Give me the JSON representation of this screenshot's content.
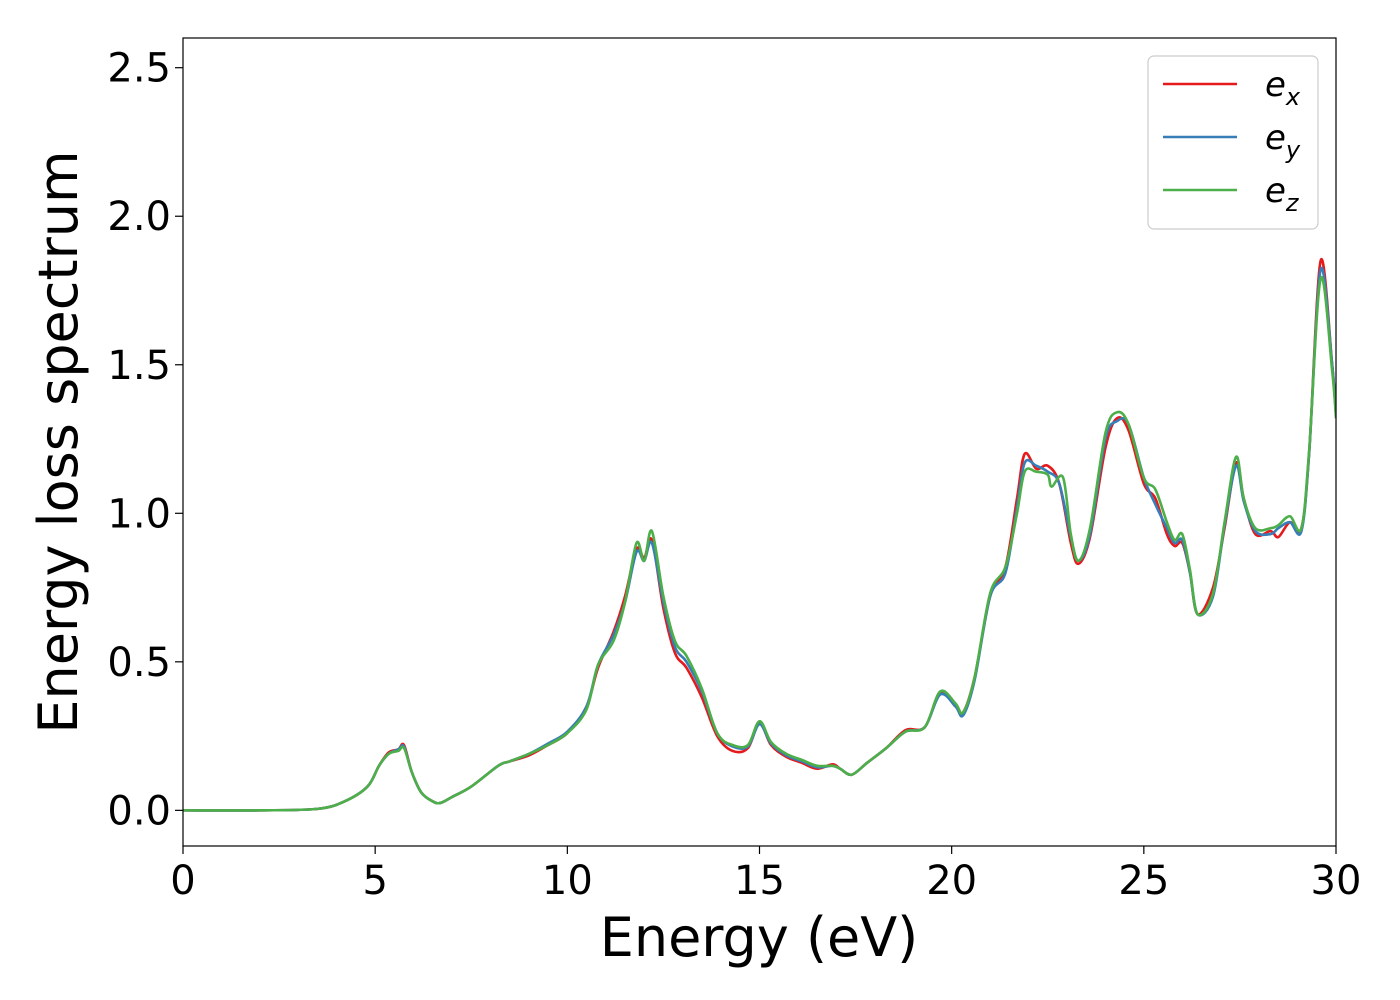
{
  "chart_data": {
    "type": "line",
    "title": "",
    "xlabel": "Energy (eV)",
    "ylabel": "Energy loss spectrum",
    "xlim": [
      0,
      30
    ],
    "ylim": [
      -0.12,
      2.6
    ],
    "x_ticks": [
      "0",
      "5",
      "10",
      "15",
      "20",
      "25",
      "30"
    ],
    "y_ticks": [
      "0.0",
      "0.5",
      "1.0",
      "1.5",
      "2.0",
      "2.5"
    ],
    "grid": false,
    "legend_position": "top-right",
    "series": [
      {
        "name": "e_x",
        "legend_base": "e",
        "legend_sub": "x",
        "color": "#e41a1c",
        "points": [
          [
            0,
            0
          ],
          [
            2,
            0
          ],
          [
            3.5,
            0.005
          ],
          [
            4.2,
            0.03
          ],
          [
            4.8,
            0.08
          ],
          [
            5.1,
            0.15
          ],
          [
            5.35,
            0.195
          ],
          [
            5.6,
            0.205
          ],
          [
            5.75,
            0.22
          ],
          [
            5.95,
            0.13
          ],
          [
            6.2,
            0.06
          ],
          [
            6.5,
            0.03
          ],
          [
            6.7,
            0.025
          ],
          [
            7,
            0.045
          ],
          [
            7.5,
            0.08
          ],
          [
            8.2,
            0.15
          ],
          [
            8.5,
            0.165
          ],
          [
            9,
            0.185
          ],
          [
            9.5,
            0.22
          ],
          [
            10,
            0.26
          ],
          [
            10.5,
            0.35
          ],
          [
            10.8,
            0.48
          ],
          [
            11.2,
            0.6
          ],
          [
            11.5,
            0.72
          ],
          [
            11.8,
            0.88
          ],
          [
            12,
            0.85
          ],
          [
            12.2,
            0.91
          ],
          [
            12.5,
            0.68
          ],
          [
            12.8,
            0.53
          ],
          [
            13.1,
            0.48
          ],
          [
            13.5,
            0.38
          ],
          [
            13.9,
            0.25
          ],
          [
            14.3,
            0.2
          ],
          [
            14.7,
            0.21
          ],
          [
            15,
            0.295
          ],
          [
            15.3,
            0.22
          ],
          [
            15.7,
            0.18
          ],
          [
            16.1,
            0.16
          ],
          [
            16.5,
            0.14
          ],
          [
            16.9,
            0.155
          ],
          [
            17.1,
            0.14
          ],
          [
            17.4,
            0.12
          ],
          [
            17.8,
            0.16
          ],
          [
            18.3,
            0.21
          ],
          [
            18.8,
            0.27
          ],
          [
            19.3,
            0.28
          ],
          [
            19.7,
            0.395
          ],
          [
            20.1,
            0.35
          ],
          [
            20.3,
            0.33
          ],
          [
            20.6,
            0.45
          ],
          [
            21,
            0.72
          ],
          [
            21.4,
            0.82
          ],
          [
            21.7,
            1.05
          ],
          [
            21.9,
            1.2
          ],
          [
            22.2,
            1.15
          ],
          [
            22.5,
            1.16
          ],
          [
            22.8,
            1.1
          ],
          [
            23.1,
            0.9
          ],
          [
            23.3,
            0.83
          ],
          [
            23.6,
            0.92
          ],
          [
            24,
            1.22
          ],
          [
            24.3,
            1.32
          ],
          [
            24.6,
            1.28
          ],
          [
            25,
            1.1
          ],
          [
            25.3,
            1.05
          ],
          [
            25.6,
            0.93
          ],
          [
            25.8,
            0.89
          ],
          [
            26,
            0.9
          ],
          [
            26.2,
            0.8
          ],
          [
            26.4,
            0.66
          ],
          [
            26.8,
            0.75
          ],
          [
            27.1,
            0.95
          ],
          [
            27.4,
            1.17
          ],
          [
            27.6,
            1.05
          ],
          [
            27.9,
            0.93
          ],
          [
            28.3,
            0.94
          ],
          [
            28.5,
            0.92
          ],
          [
            28.8,
            0.97
          ],
          [
            29.1,
            0.95
          ],
          [
            29.3,
            1.2
          ],
          [
            29.6,
            1.85
          ],
          [
            29.9,
            1.5
          ],
          [
            30,
            1.33
          ]
        ]
      },
      {
        "name": "e_y",
        "legend_base": "e",
        "legend_sub": "y",
        "color": "#377eb8",
        "points": [
          [
            0,
            0
          ],
          [
            2,
            0
          ],
          [
            3.5,
            0.005
          ],
          [
            4.2,
            0.03
          ],
          [
            4.8,
            0.08
          ],
          [
            5.1,
            0.15
          ],
          [
            5.35,
            0.19
          ],
          [
            5.6,
            0.205
          ],
          [
            5.75,
            0.215
          ],
          [
            5.95,
            0.13
          ],
          [
            6.2,
            0.06
          ],
          [
            6.5,
            0.03
          ],
          [
            6.7,
            0.025
          ],
          [
            7,
            0.045
          ],
          [
            7.5,
            0.08
          ],
          [
            8.2,
            0.15
          ],
          [
            8.5,
            0.165
          ],
          [
            9,
            0.19
          ],
          [
            9.5,
            0.225
          ],
          [
            10,
            0.265
          ],
          [
            10.5,
            0.35
          ],
          [
            10.8,
            0.49
          ],
          [
            11.2,
            0.59
          ],
          [
            11.5,
            0.7
          ],
          [
            11.8,
            0.87
          ],
          [
            12,
            0.84
          ],
          [
            12.2,
            0.9
          ],
          [
            12.5,
            0.7
          ],
          [
            12.8,
            0.55
          ],
          [
            13.1,
            0.5
          ],
          [
            13.5,
            0.4
          ],
          [
            13.9,
            0.26
          ],
          [
            14.3,
            0.215
          ],
          [
            14.7,
            0.215
          ],
          [
            15,
            0.29
          ],
          [
            15.3,
            0.225
          ],
          [
            15.7,
            0.185
          ],
          [
            16.1,
            0.165
          ],
          [
            16.5,
            0.145
          ],
          [
            16.9,
            0.15
          ],
          [
            17.1,
            0.14
          ],
          [
            17.4,
            0.12
          ],
          [
            17.8,
            0.16
          ],
          [
            18.3,
            0.21
          ],
          [
            18.8,
            0.265
          ],
          [
            19.3,
            0.28
          ],
          [
            19.7,
            0.39
          ],
          [
            20.1,
            0.35
          ],
          [
            20.3,
            0.32
          ],
          [
            20.6,
            0.44
          ],
          [
            21,
            0.72
          ],
          [
            21.4,
            0.8
          ],
          [
            21.7,
            1.02
          ],
          [
            21.9,
            1.17
          ],
          [
            22.2,
            1.16
          ],
          [
            22.5,
            1.14
          ],
          [
            22.8,
            1.1
          ],
          [
            23.1,
            0.92
          ],
          [
            23.3,
            0.84
          ],
          [
            23.6,
            0.93
          ],
          [
            24,
            1.25
          ],
          [
            24.3,
            1.31
          ],
          [
            24.6,
            1.3
          ],
          [
            25,
            1.12
          ],
          [
            25.3,
            1.03
          ],
          [
            25.6,
            0.95
          ],
          [
            25.8,
            0.9
          ],
          [
            26,
            0.91
          ],
          [
            26.2,
            0.8
          ],
          [
            26.4,
            0.66
          ],
          [
            26.8,
            0.72
          ],
          [
            27.1,
            0.96
          ],
          [
            27.4,
            1.16
          ],
          [
            27.6,
            1.04
          ],
          [
            27.9,
            0.94
          ],
          [
            28.3,
            0.93
          ],
          [
            28.5,
            0.95
          ],
          [
            28.8,
            0.97
          ],
          [
            29.1,
            0.94
          ],
          [
            29.3,
            1.2
          ],
          [
            29.6,
            1.82
          ],
          [
            29.9,
            1.5
          ],
          [
            30,
            1.33
          ]
        ]
      },
      {
        "name": "e_z",
        "legend_base": "e",
        "legend_sub": "z",
        "color": "#4daf4a",
        "points": [
          [
            0,
            0
          ],
          [
            2,
            0
          ],
          [
            3.5,
            0.005
          ],
          [
            4.2,
            0.03
          ],
          [
            4.8,
            0.08
          ],
          [
            5.1,
            0.15
          ],
          [
            5.35,
            0.19
          ],
          [
            5.6,
            0.2
          ],
          [
            5.75,
            0.21
          ],
          [
            5.95,
            0.13
          ],
          [
            6.2,
            0.06
          ],
          [
            6.5,
            0.03
          ],
          [
            6.7,
            0.025
          ],
          [
            7,
            0.045
          ],
          [
            7.5,
            0.08
          ],
          [
            8.2,
            0.15
          ],
          [
            8.5,
            0.165
          ],
          [
            9,
            0.19
          ],
          [
            9.5,
            0.22
          ],
          [
            10,
            0.26
          ],
          [
            10.5,
            0.34
          ],
          [
            10.8,
            0.49
          ],
          [
            11.2,
            0.57
          ],
          [
            11.5,
            0.7
          ],
          [
            11.8,
            0.9
          ],
          [
            12,
            0.84
          ],
          [
            12.2,
            0.94
          ],
          [
            12.5,
            0.72
          ],
          [
            12.8,
            0.57
          ],
          [
            13.1,
            0.52
          ],
          [
            13.5,
            0.41
          ],
          [
            13.9,
            0.26
          ],
          [
            14.3,
            0.22
          ],
          [
            14.7,
            0.22
          ],
          [
            15,
            0.3
          ],
          [
            15.3,
            0.23
          ],
          [
            15.7,
            0.19
          ],
          [
            16.1,
            0.17
          ],
          [
            16.5,
            0.15
          ],
          [
            16.9,
            0.15
          ],
          [
            17.1,
            0.14
          ],
          [
            17.4,
            0.12
          ],
          [
            17.8,
            0.16
          ],
          [
            18.3,
            0.21
          ],
          [
            18.8,
            0.265
          ],
          [
            19.3,
            0.28
          ],
          [
            19.7,
            0.4
          ],
          [
            20.1,
            0.36
          ],
          [
            20.3,
            0.33
          ],
          [
            20.6,
            0.45
          ],
          [
            21,
            0.73
          ],
          [
            21.4,
            0.82
          ],
          [
            21.7,
            1.0
          ],
          [
            21.9,
            1.14
          ],
          [
            22.2,
            1.14
          ],
          [
            22.5,
            1.13
          ],
          [
            22.6,
            1.09
          ],
          [
            22.9,
            1.12
          ],
          [
            23.1,
            0.93
          ],
          [
            23.3,
            0.84
          ],
          [
            23.6,
            0.95
          ],
          [
            24,
            1.27
          ],
          [
            24.3,
            1.34
          ],
          [
            24.6,
            1.3
          ],
          [
            25,
            1.12
          ],
          [
            25.3,
            1.08
          ],
          [
            25.6,
            0.97
          ],
          [
            25.8,
            0.91
          ],
          [
            26,
            0.93
          ],
          [
            26.2,
            0.81
          ],
          [
            26.4,
            0.66
          ],
          [
            26.8,
            0.73
          ],
          [
            27.1,
            0.97
          ],
          [
            27.4,
            1.19
          ],
          [
            27.6,
            1.05
          ],
          [
            27.9,
            0.95
          ],
          [
            28.3,
            0.95
          ],
          [
            28.5,
            0.96
          ],
          [
            28.8,
            0.99
          ],
          [
            29.1,
            0.95
          ],
          [
            29.3,
            1.21
          ],
          [
            29.6,
            1.79
          ],
          [
            29.9,
            1.48
          ],
          [
            30,
            1.32
          ]
        ]
      }
    ]
  }
}
